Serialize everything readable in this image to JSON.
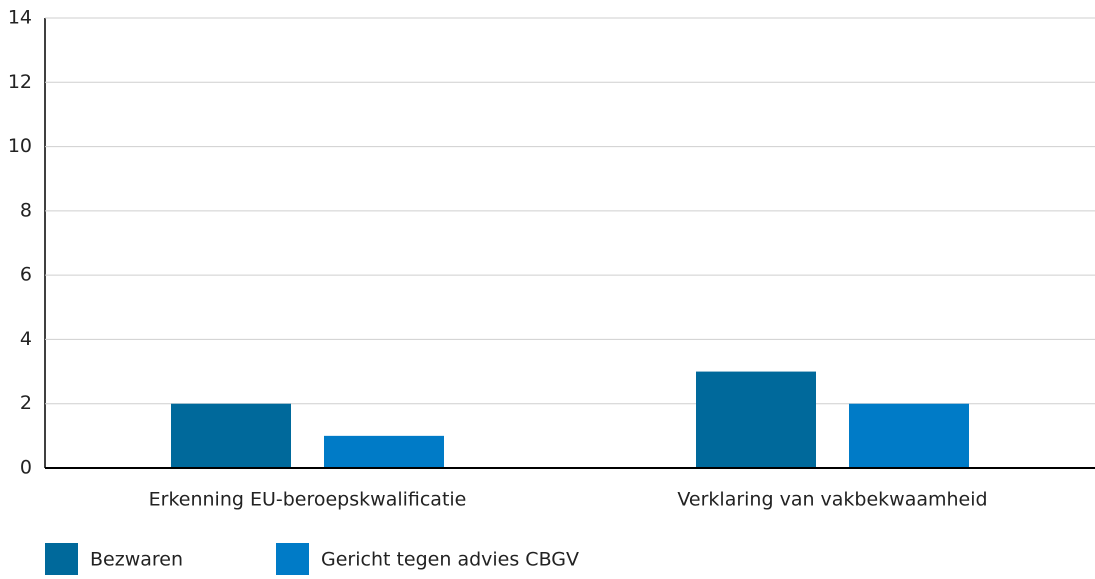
{
  "chart_data": {
    "type": "bar",
    "categories": [
      "Erkenning EU-beroepskwalificatie",
      "Verklaring van vakbekwaamheid"
    ],
    "series": [
      {
        "name": "Bezwaren",
        "color": "#00699b",
        "values": [
          2,
          3
        ]
      },
      {
        "name": "Gericht tegen advies CBGV",
        "color": "#007bc7",
        "values": [
          1,
          2
        ]
      }
    ],
    "ylim": [
      0,
      14
    ],
    "yticks": [
      0,
      2,
      4,
      6,
      8,
      10,
      12,
      14
    ],
    "grid": true,
    "legend": "bottom-left"
  }
}
